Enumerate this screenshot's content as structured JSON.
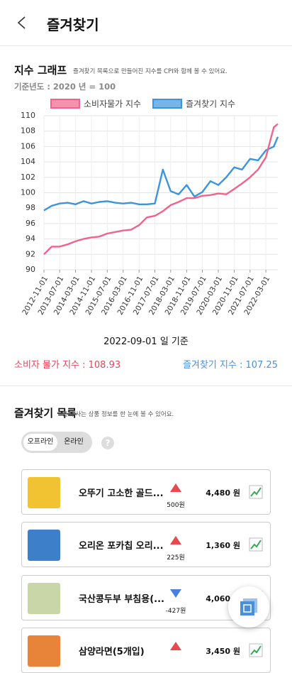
{
  "header": {
    "title": "즐겨찾기"
  },
  "chart_section": {
    "heading": "지수 그래프",
    "subheading": "즐겨찾기 목록으로 만들어진 지수를 CPI와 함께 볼 수 있어요.",
    "base_year": "기준년도 : 2020 년 = 100"
  },
  "chart_data": {
    "type": "line",
    "x": [
      "2012-11-01",
      "2013-03-01",
      "2013-07-01",
      "2013-11-01",
      "2014-03-01",
      "2014-07-01",
      "2014-11-01",
      "2015-03-01",
      "2015-07-01",
      "2015-11-01",
      "2016-03-01",
      "2016-07-01",
      "2016-11-01",
      "2017-03-01",
      "2017-07-01",
      "2017-11-01",
      "2018-03-01",
      "2018-07-01",
      "2018-11-01",
      "2019-03-01",
      "2019-07-01",
      "2019-11-01",
      "2020-03-01",
      "2020-07-01",
      "2020-11-01",
      "2021-03-01",
      "2021-07-01",
      "2021-11-01",
      "2022-03-01",
      "2022-07-01",
      "2022-09-01"
    ],
    "series": [
      {
        "name": "소비자물가 지수",
        "color": "#f0648c",
        "values": [
          92.0,
          93.0,
          93.0,
          93.3,
          93.7,
          94.0,
          94.2,
          94.3,
          94.7,
          94.9,
          95.1,
          95.2,
          95.8,
          96.8,
          97.0,
          97.6,
          98.4,
          98.8,
          99.3,
          99.3,
          99.6,
          99.7,
          99.9,
          99.8,
          100.5,
          101.2,
          102.0,
          103.0,
          104.6,
          108.5,
          108.93
        ]
      },
      {
        "name": "즐겨찾기 지수",
        "color": "#3a95dd",
        "values": [
          97.7,
          98.3,
          98.6,
          98.7,
          98.5,
          98.9,
          98.6,
          98.8,
          98.9,
          98.7,
          98.6,
          98.7,
          98.5,
          98.5,
          98.6,
          103.0,
          100.2,
          99.8,
          101.0,
          99.5,
          100.1,
          101.5,
          101.0,
          102.0,
          103.3,
          103.0,
          104.4,
          104.2,
          105.5,
          106.0,
          107.25
        ]
      }
    ],
    "xlim": [
      "2012-11-01",
      "2022-09-01"
    ],
    "xticks": [
      "2012-11-01",
      "2013-07-01",
      "2014-03-01",
      "2014-11-01",
      "2015-07-01",
      "2016-03-01",
      "2016-11-01",
      "2017-07-01",
      "2018-03-01",
      "2018-11-01",
      "2019-07-01",
      "2020-03-01",
      "2020-11-01",
      "2021-07-01",
      "2022-03-01"
    ],
    "ylim": [
      90,
      110
    ],
    "yticks": [
      90,
      92,
      94,
      96,
      98,
      100,
      102,
      104,
      106,
      108,
      110
    ],
    "grid": true,
    "legend": "top"
  },
  "summary": {
    "date": "2022-09-01 일 기준",
    "cpi": "소비자 물가 지수 : 108.93",
    "favorites": "즐겨찾기 지수 : 107.25"
  },
  "list_section": {
    "heading": "즐겨찾기 목록",
    "subheading": "즐겨 사는 상품 정보를 한 눈에 볼 수 있어요.",
    "tabs": [
      "오프라인",
      "온라인"
    ],
    "help": "?"
  },
  "items": [
    {
      "name": "오뚜기 고소한 골드...",
      "direction": "up",
      "change": "500원",
      "price": "4,480 원",
      "image_color": "#f1c232"
    },
    {
      "name": "오리온 포카칩 오리...",
      "direction": "up",
      "change": "225원",
      "price": "1,360 원",
      "image_color": "#3d7fc9"
    },
    {
      "name": "국산콩두부 부침용(...",
      "direction": "down",
      "change": "-427원",
      "price": "4,060 원",
      "image_color": "#c9d6a8"
    },
    {
      "name": "삼양라면(5개입)",
      "direction": "up",
      "price": "3,450 원",
      "image_color": "#e8833a"
    }
  ]
}
